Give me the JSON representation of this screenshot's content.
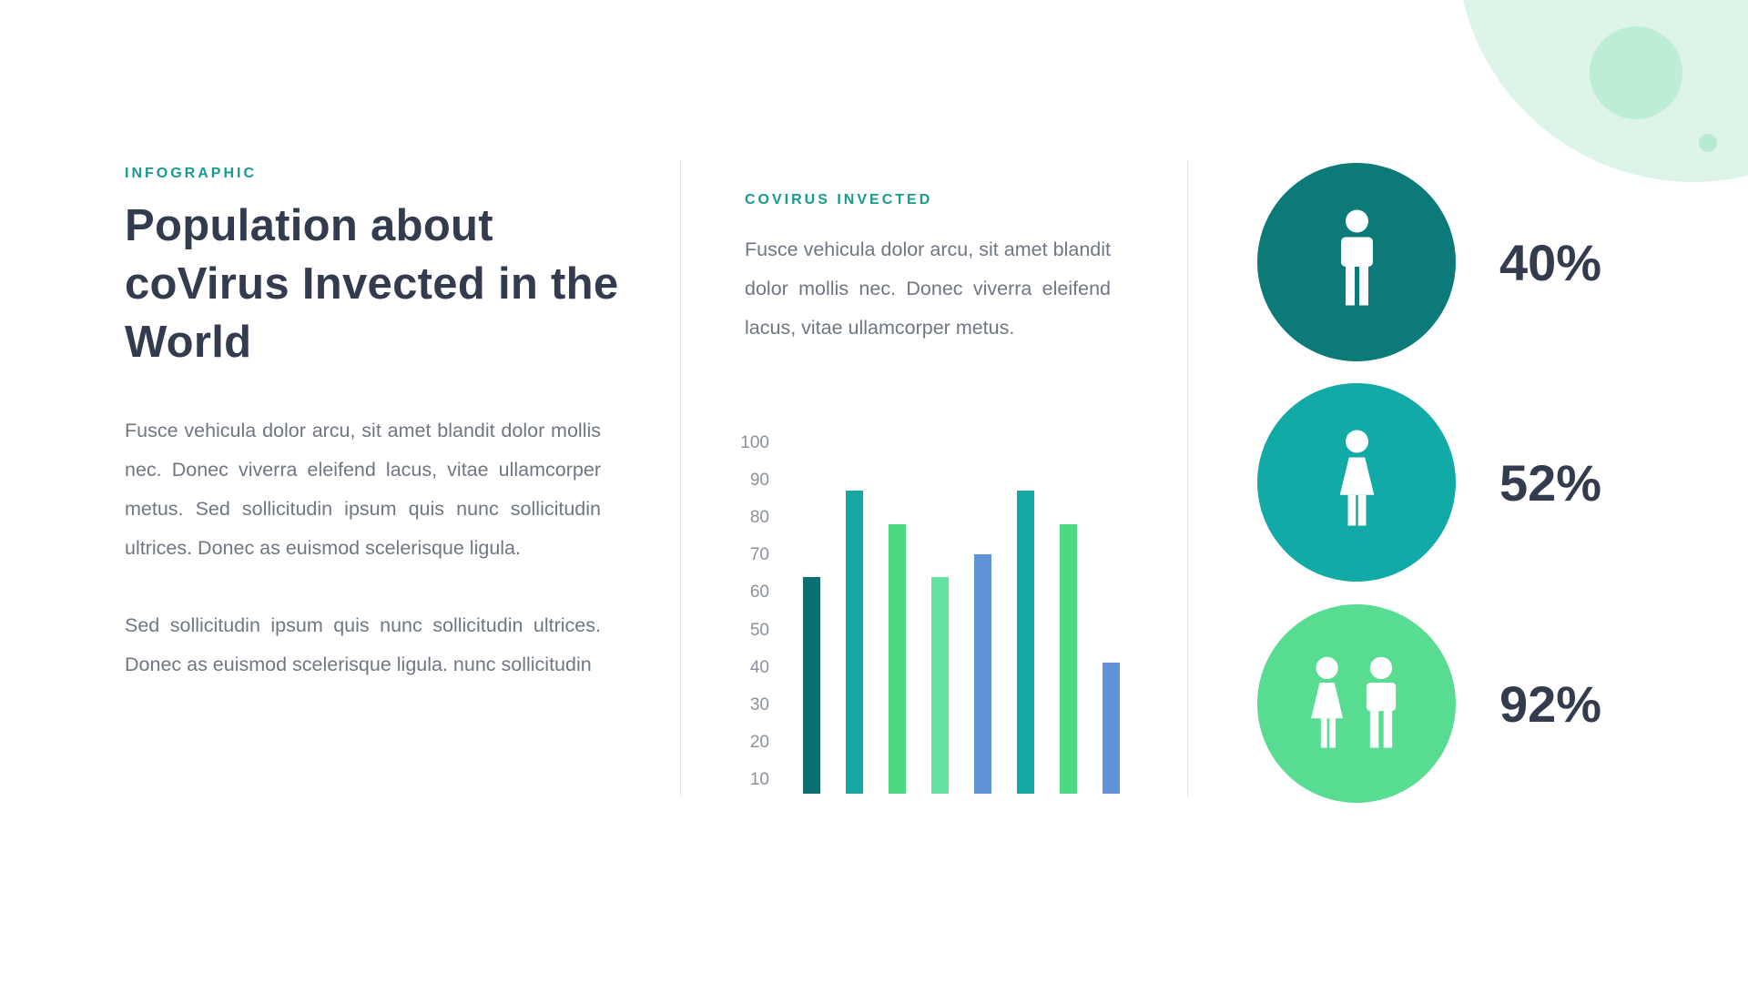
{
  "theme": {
    "accent_color": "#169B8F",
    "title_color": "#333C4E",
    "body_color": "#6F7782",
    "background": "#FFFFFF",
    "divider_color": "#E4E6E8"
  },
  "left": {
    "eyebrow": "INFOGRAPHIC",
    "title": "Population about coVirus Invected in the World",
    "paragraph1": "Fusce vehicula dolor arcu, sit amet blandit dolor mollis nec. Donec viverra eleifend lacus, vitae ullamcorper metus. Sed sollicitudin ipsum quis nunc sollicitudin ultrices. Donec as euismod scelerisque ligula.",
    "paragraph2": "Sed sollicitudin ipsum quis nunc sollicitudin ultrices. Donec as euismod scelerisque ligula. nunc sollicitudin"
  },
  "middle": {
    "eyebrow": "COVIRUS INVECTED",
    "paragraph": "Fusce vehicula dolor arcu, sit amet blandit dolor mollis nec. Donec viverra eleifend lacus, vitae ullamcorper metus."
  },
  "chart_data": {
    "type": "bar",
    "title": "COVIRUS INVECTED",
    "values": [
      64,
      87,
      78,
      64,
      70,
      87,
      78,
      41
    ],
    "colors": [
      "#0B6E72",
      "#15A7A1",
      "#4CD97F",
      "#62E3A2",
      "#5E93D8",
      "#15A7A1",
      "#4CD97F",
      "#5E93D8"
    ],
    "y_ticks": [
      100,
      90,
      80,
      70,
      60,
      50,
      40,
      30,
      20,
      10
    ],
    "ylim": [
      0,
      100
    ],
    "xlabel": "",
    "ylabel": "",
    "grid": false,
    "legend": false
  },
  "stats": [
    {
      "percent": "40%",
      "icon": "male-icon",
      "circle_color": "#0D7A7A"
    },
    {
      "percent": "52%",
      "icon": "female-icon",
      "circle_color": "#12AAA6"
    },
    {
      "percent": "92%",
      "icon": "couple-icon",
      "circle_color": "#57DC92"
    }
  ],
  "decor": {
    "large_color": "#DDF5E9",
    "medium_color": "#BEEDD6",
    "dot_color": "#B7EAD1"
  }
}
